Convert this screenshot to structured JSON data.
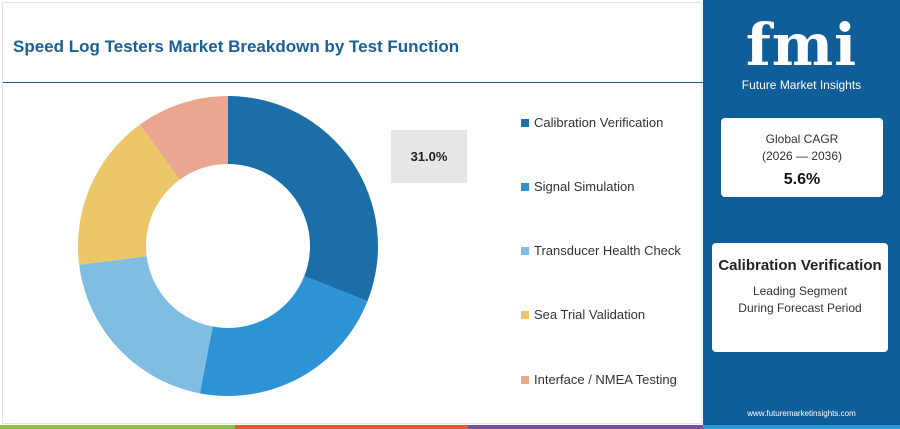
{
  "title": "Speed Log Testers Market Breakdown by Test Function",
  "callout_value": "31.0%",
  "chart_data": {
    "type": "pie",
    "donut": true,
    "title": "Speed Log Testers Market Breakdown by Test Function",
    "categories": [
      "Calibration Verification",
      "Signal Simulation",
      "Transducer Health Check",
      "Sea Trial Validation",
      "Interface / NMEA Testing"
    ],
    "values": [
      31.0,
      22.0,
      20.0,
      17.0,
      10.0
    ],
    "colors": [
      "#1c6ea8",
      "#2e93d5",
      "#7fbde3",
      "#ecc76a",
      "#eba690"
    ],
    "legend_position": "right"
  },
  "legend": [
    {
      "label": "Calibration Verification",
      "color": "#1c6ea8"
    },
    {
      "label": "Signal Simulation",
      "color": "#2e93d5"
    },
    {
      "label": "Transducer Health Check",
      "color": "#7fbde3"
    },
    {
      "label": "Sea Trial Validation",
      "color": "#ecc76a"
    },
    {
      "label": "Interface / NMEA Testing",
      "color": "#eba690"
    }
  ],
  "sidebar": {
    "logo_text": "fmi",
    "logo_tagline": "Future Market Insights",
    "cagr_label": "Global CAGR",
    "cagr_period": "(2026 — 2036)",
    "cagr_value": "5.6%",
    "segment_name": "Calibration Verification",
    "segment_desc_line1": "Leading Segment",
    "segment_desc_line2": "During Forecast Period",
    "website": "www.futuremarketinsights.com",
    "background": "#0f5d99"
  },
  "bottom_bar_colors": [
    "#8cbf4e",
    "#e0593a",
    "#7a4f9a",
    "#2a9bd6"
  ]
}
